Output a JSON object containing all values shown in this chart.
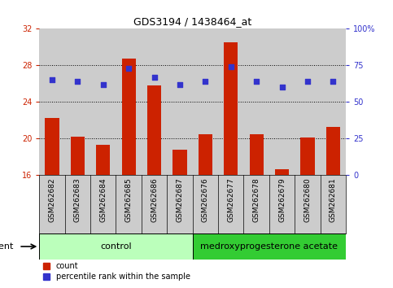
{
  "title": "GDS3194 / 1438464_at",
  "samples": [
    "GSM262682",
    "GSM262683",
    "GSM262684",
    "GSM262685",
    "GSM262686",
    "GSM262687",
    "GSM262676",
    "GSM262677",
    "GSM262678",
    "GSM262679",
    "GSM262680",
    "GSM262681"
  ],
  "counts": [
    22.2,
    20.2,
    19.3,
    28.7,
    25.8,
    18.8,
    20.5,
    30.5,
    20.5,
    16.6,
    20.1,
    21.3
  ],
  "percentile_ranks": [
    65,
    64,
    62,
    73,
    67,
    62,
    64,
    74,
    64,
    60,
    64,
    64
  ],
  "ylim_left": [
    16,
    32
  ],
  "ylim_right": [
    0,
    100
  ],
  "yticks_left": [
    16,
    20,
    24,
    28,
    32
  ],
  "yticks_right": [
    0,
    25,
    50,
    75,
    100
  ],
  "ytick_labels_right": [
    "0",
    "25",
    "50",
    "75",
    "100%"
  ],
  "bar_color": "#cc2200",
  "dot_color": "#3333cc",
  "bg_color": "#ffffff",
  "control_label": "control",
  "treatment_label": "medroxyprogesterone acetate",
  "agent_label": "agent",
  "control_color": "#bbffbb",
  "treatment_color": "#33cc33",
  "tick_color_left": "#cc2200",
  "tick_color_right": "#3333cc",
  "legend_count_label": "count",
  "legend_pct_label": "percentile rank within the sample",
  "bar_width": 0.55,
  "sample_bg_color": "#cccccc",
  "n_control": 6,
  "dot_size": 20
}
